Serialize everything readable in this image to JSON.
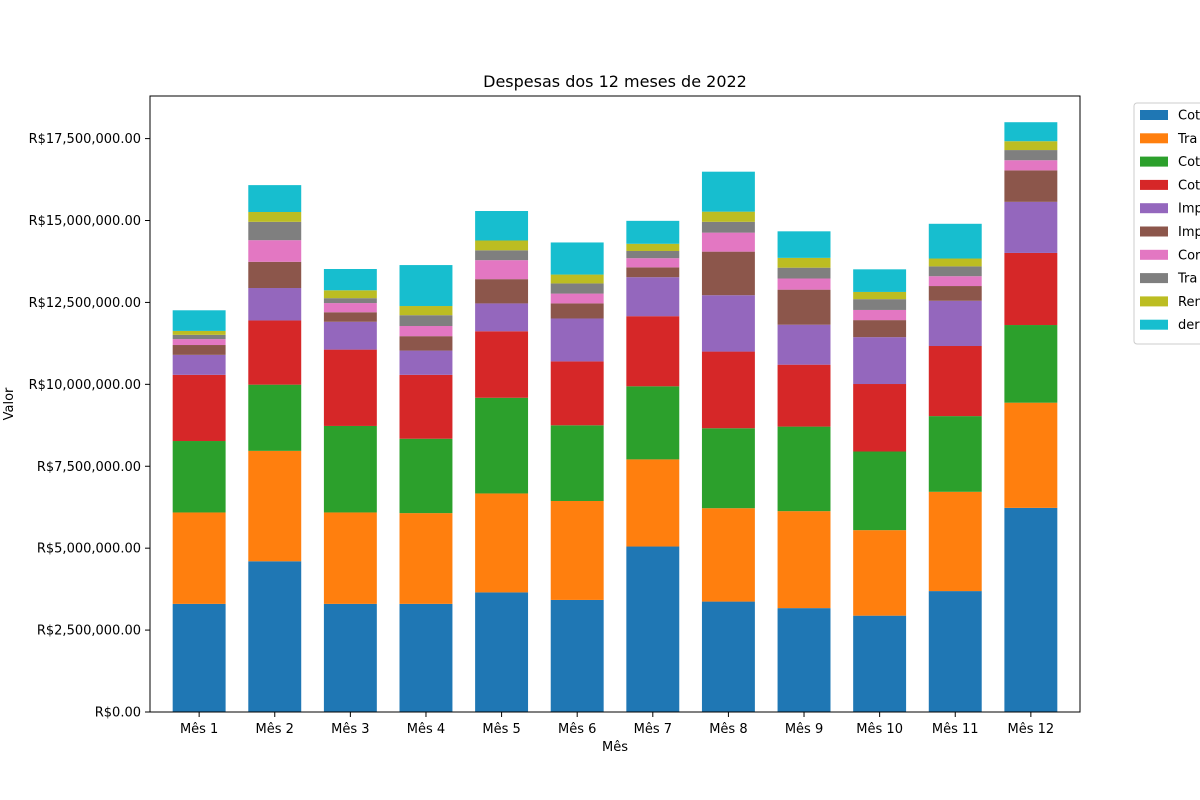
{
  "chart_data": {
    "type": "bar",
    "stacked": true,
    "title": "Despesas dos 12 meses de 2022",
    "xlabel": "Mês",
    "ylabel": "Valor",
    "ylim": [
      0,
      18800000
    ],
    "y_ticks": [
      {
        "value": 0,
        "label": "R$0.00"
      },
      {
        "value": 2500000,
        "label": "R$2,500,000.00"
      },
      {
        "value": 5000000,
        "label": "R$5,000,000.00"
      },
      {
        "value": 7500000,
        "label": "R$7,500,000.00"
      },
      {
        "value": 10000000,
        "label": "R$10,000,000.00"
      },
      {
        "value": 12500000,
        "label": "R$12,500,000.00"
      },
      {
        "value": 15000000,
        "label": "R$15,000,000.00"
      },
      {
        "value": 17500000,
        "label": "R$17,500,000.00"
      }
    ],
    "grid": false,
    "legend_position": "outside top-right (clipped)",
    "categories": [
      "Mês 1",
      "Mês 2",
      "Mês 3",
      "Mês 4",
      "Mês 5",
      "Mês 6",
      "Mês 7",
      "Mês 8",
      "Mês 9",
      "Mês 10",
      "Mês 11",
      "Mês 12"
    ],
    "series": [
      {
        "name": "Cot",
        "color": "#1f77b4",
        "values": [
          3300000,
          4600000,
          3300000,
          3300000,
          3650000,
          3420000,
          5050000,
          3370000,
          3170000,
          2940000,
          3690000,
          6230000
        ]
      },
      {
        "name": "Tra",
        "color": "#ff7f0e",
        "values": [
          2790000,
          3370000,
          2790000,
          2770000,
          3020000,
          3020000,
          2660000,
          2850000,
          2960000,
          2610000,
          3030000,
          3210000
        ]
      },
      {
        "name": "Cot",
        "color": "#2ca02c",
        "values": [
          2180000,
          2020000,
          2640000,
          2270000,
          2920000,
          2310000,
          2230000,
          2440000,
          2580000,
          2400000,
          2310000,
          2370000
        ]
      },
      {
        "name": "Cot",
        "color": "#d62728",
        "values": [
          2020000,
          1960000,
          2330000,
          1950000,
          2030000,
          1950000,
          2140000,
          2340000,
          1890000,
          2060000,
          2140000,
          2200000
        ]
      },
      {
        "name": "Imp",
        "color": "#9467bd",
        "values": [
          610000,
          990000,
          850000,
          740000,
          850000,
          1310000,
          1190000,
          1720000,
          1220000,
          1430000,
          1380000,
          1560000
        ]
      },
      {
        "name": "Imp",
        "color": "#8c564b",
        "values": [
          300000,
          800000,
          290000,
          440000,
          740000,
          460000,
          300000,
          1330000,
          1070000,
          520000,
          450000,
          960000
        ]
      },
      {
        "name": "Cor",
        "color": "#e377c2",
        "values": [
          180000,
          660000,
          280000,
          310000,
          580000,
          300000,
          280000,
          580000,
          340000,
          310000,
          300000,
          310000
        ]
      },
      {
        "name": "Tra",
        "color": "#7f7f7f",
        "values": [
          130000,
          560000,
          150000,
          330000,
          300000,
          310000,
          220000,
          330000,
          330000,
          330000,
          300000,
          310000
        ]
      },
      {
        "name": "Ren",
        "color": "#bcbd22",
        "values": [
          120000,
          300000,
          240000,
          280000,
          300000,
          270000,
          220000,
          310000,
          300000,
          220000,
          240000,
          270000
        ]
      },
      {
        "name": "der",
        "color": "#17becf",
        "values": [
          630000,
          820000,
          650000,
          1250000,
          900000,
          980000,
          700000,
          1220000,
          810000,
          690000,
          1060000,
          580000
        ]
      }
    ]
  }
}
